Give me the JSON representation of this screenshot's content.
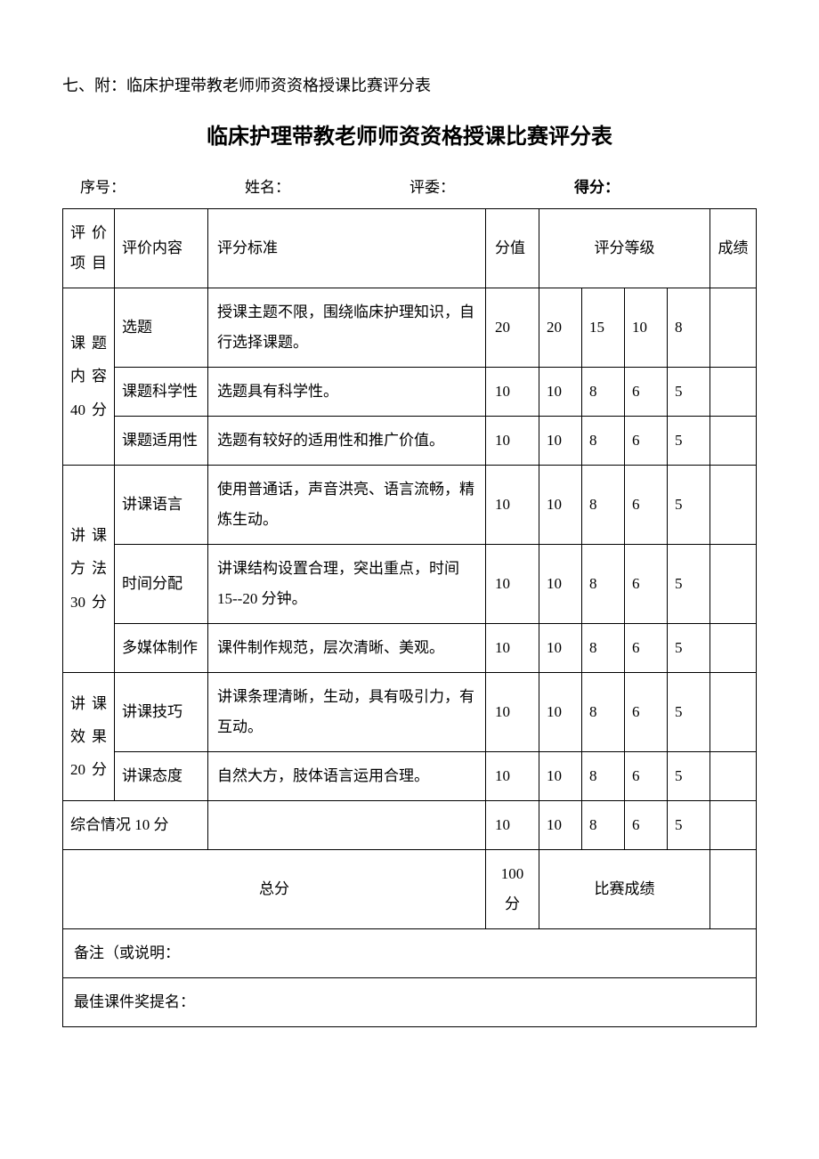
{
  "document": {
    "attachment_label": "七、附：临床护理带教老师师资资格授课比赛评分表",
    "main_title": "临床护理带教老师师资资格授课比赛评分表",
    "header_fields": {
      "serial": "序号：",
      "name": "姓名：",
      "judge": "评委：",
      "score": "得分："
    },
    "table": {
      "headers": {
        "category": "评价项目",
        "content": "评价内容",
        "standard": "评分标准",
        "value": "分值",
        "grade_levels": "评分等级",
        "score": "成绩"
      },
      "sections": [
        {
          "category_label": "课题内容40分",
          "rows": [
            {
              "content": "选题",
              "standard": "授课主题不限，围绕临床护理知识，自行选择课题。",
              "value": "20",
              "grades": [
                "20",
                "15",
                "10",
                "8"
              ]
            },
            {
              "content": "课题科学性",
              "standard": "选题具有科学性。",
              "value": "10",
              "grades": [
                "10",
                "8",
                "6",
                "5"
              ]
            },
            {
              "content": "课题适用性",
              "standard": "选题有较好的适用性和推广价值。",
              "value": "10",
              "grades": [
                "10",
                "8",
                "6",
                "5"
              ]
            }
          ]
        },
        {
          "category_label": "讲课方法30分",
          "rows": [
            {
              "content": "讲课语言",
              "standard": "使用普通话，声音洪亮、语言流畅，精炼生动。",
              "value": "10",
              "grades": [
                "10",
                "8",
                "6",
                "5"
              ]
            },
            {
              "content": "时间分配",
              "standard": "讲课结构设置合理，突出重点，时间 15--20 分钟。",
              "value": "10",
              "grades": [
                "10",
                "8",
                "6",
                "5"
              ]
            },
            {
              "content": "多媒体制作",
              "standard": "课件制作规范，层次清晰、美观。",
              "value": "10",
              "grades": [
                "10",
                "8",
                "6",
                "5"
              ]
            }
          ]
        },
        {
          "category_label": "讲课效果20分",
          "rows": [
            {
              "content": "讲课技巧",
              "standard": "讲课条理清晰，生动，具有吸引力，有互动。",
              "value": "10",
              "grades": [
                "10",
                "8",
                "6",
                "5"
              ]
            },
            {
              "content": "讲课态度",
              "standard": "自然大方，肢体语言运用合理。",
              "value": "10",
              "grades": [
                "10",
                "8",
                "6",
                "5"
              ]
            }
          ]
        }
      ],
      "comprehensive": {
        "label": "综合情况 10 分",
        "value": "10",
        "grades": [
          "10",
          "8",
          "6",
          "5"
        ]
      },
      "total": {
        "label": "总分",
        "value": "100 分",
        "result_label": "比赛成绩"
      },
      "notes": {
        "remark": "备注（或说明：",
        "nomination": "最佳课件奖提名："
      }
    }
  },
  "styling": {
    "background_color": "#ffffff",
    "text_color": "#000000",
    "border_color": "#000000",
    "body_fontsize": 17,
    "title_fontsize": 24,
    "attachment_fontsize": 18,
    "line_height": 2
  }
}
